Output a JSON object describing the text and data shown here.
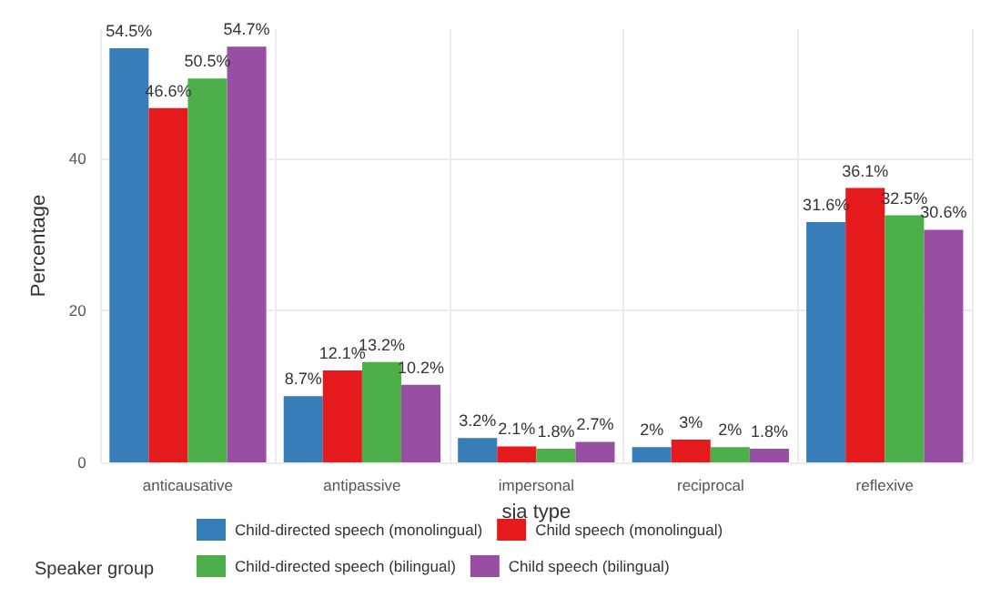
{
  "chart_data": {
    "type": "bar",
    "xlabel": "sja type",
    "ylabel": "Percentage",
    "legend_title": "Speaker group",
    "categories": [
      "anticausative",
      "antipassive",
      "impersonal",
      "reciprocal",
      "reflexive"
    ],
    "series": [
      {
        "name": "Child-directed speech (monolingual)",
        "color": "#377eb8",
        "values": [
          54.5,
          8.7,
          3.2,
          2,
          31.6
        ],
        "value_labels": [
          "54.5%",
          "8.7%",
          "3.2%",
          "2%",
          "31.6%"
        ]
      },
      {
        "name": "Child speech (monolingual)",
        "color": "#e41a1c",
        "values": [
          46.6,
          12.1,
          2.1,
          3,
          36.1
        ],
        "value_labels": [
          "46.6%",
          "12.1%",
          "2.1%",
          "3%",
          "36.1%"
        ]
      },
      {
        "name": "Child-directed speech (bilingual)",
        "color": "#4daf4a",
        "values": [
          50.5,
          13.2,
          1.8,
          2,
          32.5
        ],
        "value_labels": [
          "50.5%",
          "13.2%",
          "1.8%",
          "2%",
          "32.5%"
        ]
      },
      {
        "name": "Child speech (bilingual)",
        "color": "#984ea3",
        "values": [
          54.7,
          10.2,
          2.7,
          1.8,
          30.6
        ],
        "value_labels": [
          "54.7%",
          "10.2%",
          "2.7%",
          "1.8%",
          "30.6%"
        ]
      }
    ],
    "ylim": [
      0,
      57
    ],
    "yticks": [
      0,
      20,
      40
    ],
    "grid": true,
    "legend": "bottom"
  }
}
